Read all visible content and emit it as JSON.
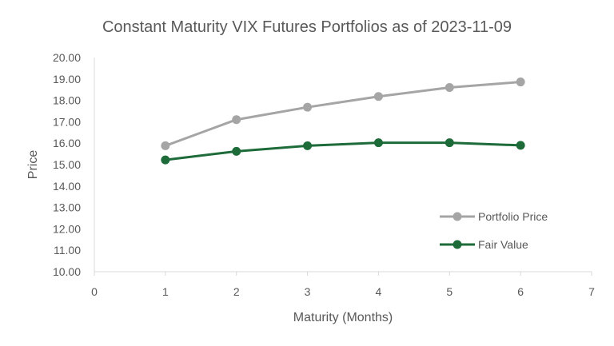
{
  "chart_data": {
    "type": "line",
    "title": "Constant Maturity VIX Futures Portfolios as of 2023-11-09",
    "xlabel": "Maturity (Months)",
    "ylabel": "Price",
    "xlim": [
      0,
      7
    ],
    "ylim": [
      10,
      20
    ],
    "x_ticks": [
      "0",
      "1",
      "2",
      "3",
      "4",
      "5",
      "6",
      "7"
    ],
    "y_ticks": [
      "10.00",
      "11.00",
      "12.00",
      "13.00",
      "14.00",
      "15.00",
      "16.00",
      "17.00",
      "18.00",
      "19.00",
      "20.00"
    ],
    "grid": false,
    "legend_position": "bottom-right",
    "x": [
      1,
      2,
      3,
      4,
      5,
      6
    ],
    "series": [
      {
        "name": "Portfolio Price",
        "color": "#a5a5a5",
        "values": [
          15.88,
          17.1,
          17.68,
          18.18,
          18.6,
          18.86
        ]
      },
      {
        "name": "Fair Value",
        "color": "#1e6b3a",
        "values": [
          15.22,
          15.62,
          15.88,
          16.02,
          16.02,
          15.9
        ]
      }
    ]
  }
}
